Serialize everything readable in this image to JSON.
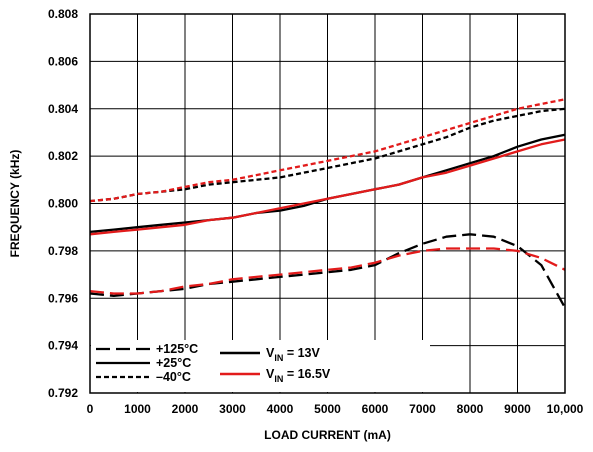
{
  "chart_data": {
    "type": "line",
    "title": "",
    "xlabel": "LOAD CURRENT (mA)",
    "ylabel": "FREQUENCY (kHz)",
    "xlim": [
      0,
      10000
    ],
    "ylim": [
      0.792,
      0.808
    ],
    "x_ticks": [
      0,
      1000,
      2000,
      3000,
      4000,
      5000,
      6000,
      7000,
      8000,
      9000,
      10000
    ],
    "x_tick_labels": [
      "0",
      "1000",
      "2000",
      "3000",
      "4000",
      "5000",
      "6000",
      "7000",
      "8000",
      "9000",
      "10,000"
    ],
    "y_ticks": [
      0.792,
      0.794,
      0.796,
      0.798,
      0.8,
      0.802,
      0.804,
      0.806,
      0.808
    ],
    "y_tick_labels": [
      "0.792",
      "0.794",
      "0.796",
      "0.798",
      "0.800",
      "0.802",
      "0.804",
      "0.806",
      "0.808"
    ],
    "grid": true,
    "legend_placement": "bottom-left",
    "legend": {
      "temperatures": [
        {
          "label": "+125°C",
          "dash": "long-dash"
        },
        {
          "label": "+25°C",
          "dash": "solid"
        },
        {
          "label": "–40°C",
          "dash": "short-dash"
        }
      ],
      "voltages": [
        {
          "label_main": "V",
          "label_sub": "IN",
          "label_rest": " = 13V",
          "color": "#000000"
        },
        {
          "label_main": "V",
          "label_sub": "IN",
          "label_rest": " = 16.5V",
          "color": "#e21b1b"
        }
      ]
    },
    "x": [
      0,
      500,
      1000,
      1500,
      2000,
      2500,
      3000,
      3500,
      4000,
      4500,
      5000,
      5500,
      6000,
      6500,
      7000,
      7500,
      8000,
      8500,
      9000,
      9500,
      10000
    ],
    "series": [
      {
        "temp": "–40°C",
        "vin": "13V",
        "color": "#000000",
        "dash": "short-dash",
        "values": [
          0.8001,
          0.8002,
          0.8004,
          0.8005,
          0.8006,
          0.8008,
          0.8009,
          0.801,
          0.8011,
          0.8013,
          0.8015,
          0.8017,
          0.8019,
          0.8022,
          0.8025,
          0.8028,
          0.8032,
          0.8035,
          0.8037,
          0.8039,
          0.804
        ]
      },
      {
        "temp": "–40°C",
        "vin": "16.5V",
        "color": "#e21b1b",
        "dash": "short-dash",
        "values": [
          0.8001,
          0.8002,
          0.8004,
          0.8005,
          0.8007,
          0.8009,
          0.801,
          0.8012,
          0.8014,
          0.8016,
          0.8018,
          0.802,
          0.8022,
          0.8025,
          0.8028,
          0.8031,
          0.8034,
          0.8037,
          0.804,
          0.8042,
          0.8044
        ]
      },
      {
        "temp": "+25°C",
        "vin": "13V",
        "color": "#000000",
        "dash": "solid",
        "values": [
          0.7988,
          0.7989,
          0.799,
          0.7991,
          0.7992,
          0.7993,
          0.7994,
          0.7996,
          0.7997,
          0.7999,
          0.8002,
          0.8004,
          0.8006,
          0.8008,
          0.8011,
          0.8014,
          0.8017,
          0.802,
          0.8024,
          0.8027,
          0.8029
        ]
      },
      {
        "temp": "+25°C",
        "vin": "16.5V",
        "color": "#e21b1b",
        "dash": "solid",
        "values": [
          0.7987,
          0.7988,
          0.7989,
          0.799,
          0.7991,
          0.7993,
          0.7994,
          0.7996,
          0.7998,
          0.8,
          0.8002,
          0.8004,
          0.8006,
          0.8008,
          0.8011,
          0.8013,
          0.8016,
          0.8019,
          0.8022,
          0.8025,
          0.8027
        ]
      },
      {
        "temp": "+125°C",
        "vin": "13V",
        "color": "#000000",
        "dash": "long-dash",
        "values": [
          0.7962,
          0.7961,
          0.7962,
          0.7963,
          0.7964,
          0.7966,
          0.7967,
          0.7968,
          0.7969,
          0.797,
          0.7971,
          0.7972,
          0.7974,
          0.7979,
          0.7983,
          0.7986,
          0.7987,
          0.7986,
          0.7982,
          0.7974,
          0.7956
        ]
      },
      {
        "temp": "+125°C",
        "vin": "16.5V",
        "color": "#e21b1b",
        "dash": "long-dash",
        "values": [
          0.7963,
          0.7962,
          0.7962,
          0.7963,
          0.7965,
          0.7966,
          0.7968,
          0.7969,
          0.797,
          0.7971,
          0.7972,
          0.7973,
          0.7975,
          0.7978,
          0.798,
          0.7981,
          0.7981,
          0.7981,
          0.798,
          0.7977,
          0.7972
        ]
      }
    ]
  }
}
